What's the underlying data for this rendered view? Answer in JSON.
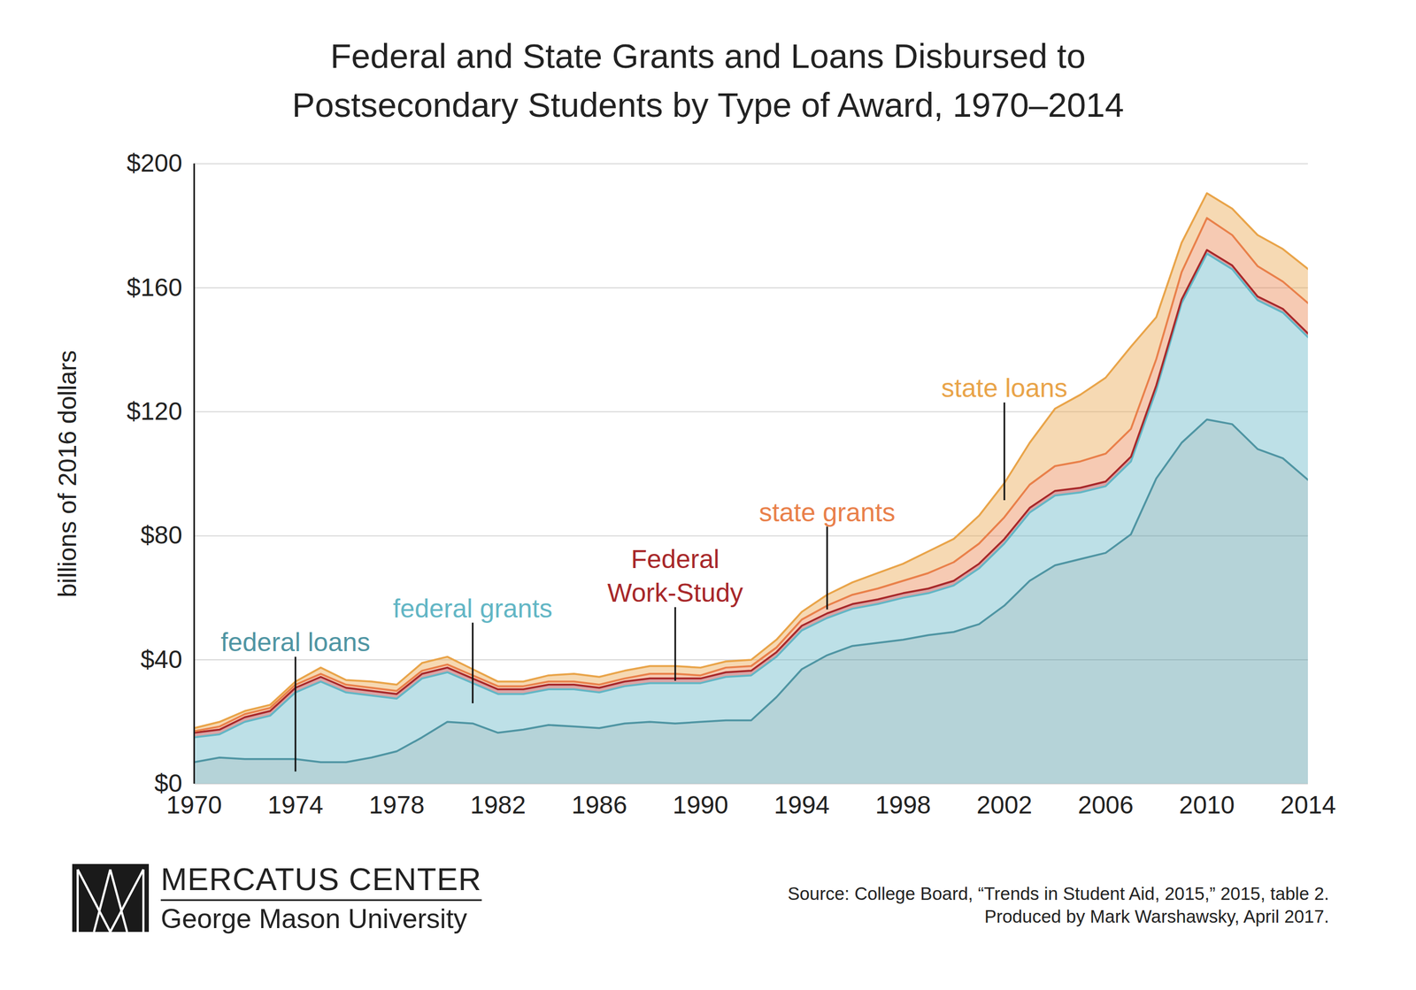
{
  "chart_data": {
    "type": "area",
    "stacked": true,
    "title": "Federal and State Grants and Loans Disbursed to\nPostsecondary Students by Type of Award, 1970–2014",
    "y_label": "billions of 2016 dollars",
    "x": [
      1970,
      1971,
      1972,
      1973,
      1974,
      1975,
      1976,
      1977,
      1978,
      1979,
      1980,
      1981,
      1982,
      1983,
      1984,
      1985,
      1986,
      1987,
      1988,
      1989,
      1990,
      1991,
      1992,
      1993,
      1994,
      1995,
      1996,
      1997,
      1998,
      1999,
      2000,
      2001,
      2002,
      2003,
      2004,
      2005,
      2006,
      2007,
      2008,
      2009,
      2010,
      2011,
      2012,
      2013,
      2014
    ],
    "series": [
      {
        "name": "federal loans",
        "color": "#4f95a3",
        "values": [
          7,
          8.5,
          8,
          8,
          8,
          7,
          7,
          8.5,
          10.5,
          15,
          20,
          19.5,
          16.5,
          17.5,
          19,
          18.5,
          18,
          19.5,
          20,
          19.5,
          20,
          20.5,
          20.5,
          28,
          37,
          41.5,
          44.5,
          45.5,
          46.5,
          48,
          49,
          51.5,
          57.5,
          65.5,
          70.5,
          72.5,
          74.5,
          80.5,
          98.5,
          110,
          117.5,
          116,
          108,
          105,
          98
        ]
      },
      {
        "name": "federal grants",
        "color": "#62b6c5",
        "values": [
          8,
          7.5,
          12,
          14,
          21.5,
          26,
          22.5,
          20,
          17,
          19,
          16,
          13,
          12.5,
          11.5,
          11.5,
          12,
          11.5,
          12,
          12.5,
          13,
          12.5,
          14,
          14.5,
          13,
          12.5,
          12,
          12,
          12.5,
          13.5,
          13.5,
          15,
          18,
          20,
          22,
          22.5,
          21.5,
          21.5,
          23.5,
          28.5,
          45,
          53.5,
          50,
          48,
          47,
          46
        ]
      },
      {
        "name": "Federal Work-Study",
        "color": "#a8282a",
        "values": [
          1.5,
          1.5,
          1.5,
          1.5,
          1.5,
          1.5,
          1.5,
          1.5,
          1.5,
          1.5,
          1.5,
          1.5,
          1.5,
          1.5,
          1.5,
          1.5,
          1.5,
          1.5,
          1.5,
          1.5,
          1.5,
          1.5,
          1.5,
          1.5,
          1.5,
          1.5,
          1.5,
          1.5,
          1.5,
          1.5,
          1.5,
          1.5,
          1.5,
          1.5,
          1.5,
          1.5,
          1.5,
          1.5,
          1.5,
          1.2,
          1.2,
          1.2,
          1.2,
          1.2,
          1.2
        ]
      },
      {
        "name": "state grants",
        "color": "#e9804a",
        "values": [
          0.5,
          1,
          1,
          1,
          1,
          1,
          1,
          1,
          1,
          1,
          1,
          1,
          1,
          1,
          1,
          1,
          1,
          1,
          1.5,
          1.5,
          1,
          1.5,
          1.5,
          1.5,
          2,
          2.5,
          3,
          3.5,
          4,
          5,
          6,
          6.5,
          7,
          7.5,
          8,
          8.5,
          9,
          9,
          8.5,
          8.8,
          10.3,
          9.8,
          9.8,
          8.8,
          9.8
        ]
      },
      {
        "name": "state loans",
        "color": "#e9a449",
        "values": [
          1,
          1.5,
          1,
          1,
          1,
          2,
          1.5,
          2,
          2,
          2.5,
          2.5,
          2,
          1.5,
          1.5,
          2,
          2.5,
          2.5,
          2.5,
          2.5,
          2.5,
          2.5,
          2,
          2,
          2.5,
          2.5,
          3.5,
          4,
          5,
          5.5,
          7,
          7.5,
          9,
          11,
          13.5,
          18.5,
          21.5,
          24.5,
          26.5,
          13.5,
          9.5,
          8,
          8.5,
          10,
          10.5,
          11
        ]
      }
    ],
    "xlim": [
      1970,
      2014
    ],
    "xticks": [
      1970,
      1974,
      1978,
      1982,
      1986,
      1990,
      1994,
      1998,
      2002,
      2006,
      2010,
      2014
    ],
    "ylim": [
      0,
      200
    ],
    "yticks": [
      {
        "value": 0,
        "label": "$0"
      },
      {
        "value": 40,
        "label": "$40"
      },
      {
        "value": 80,
        "label": "$80"
      },
      {
        "value": 120,
        "label": "$120"
      },
      {
        "value": 160,
        "label": "$160"
      },
      {
        "value": 200,
        "label": "$200"
      }
    ],
    "grid": true,
    "annotations": [
      {
        "text": "federal loans",
        "series": "federal loans",
        "x": 1974,
        "y": 41
      },
      {
        "text": "federal grants",
        "series": "federal grants",
        "x": 1981,
        "y": 52
      },
      {
        "text": "Federal\nWork-Study",
        "series": "Federal Work-Study",
        "x": 1989,
        "y": 57
      },
      {
        "text": "state grants",
        "series": "state grants",
        "x": 1995,
        "y": 83
      },
      {
        "text": "state loans",
        "series": "state loans",
        "x": 2002,
        "y": 123
      }
    ],
    "logo": [
      "MERCATUS CENTER",
      "George Mason University"
    ],
    "source": [
      "Source: College Board, “Trends in Student Aid, 2015,” 2015, table 2.",
      "Produced by Mark Warshawsky, April 2017."
    ]
  }
}
